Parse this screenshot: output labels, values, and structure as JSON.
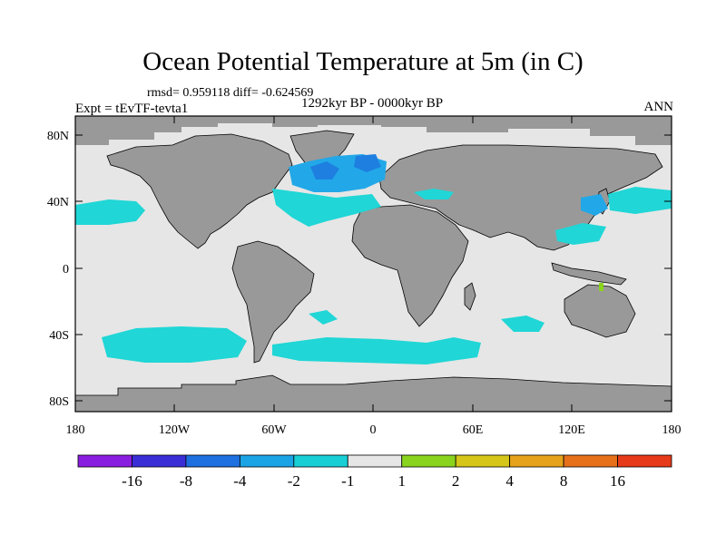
{
  "title": "Ocean Potential Temperature at 5m (in C)",
  "stats": "rmsd= 0.959118  diff= -0.624569",
  "period": "1292kyr BP - 0000kyr BP",
  "experiment": "Expt = tEvTF-tevta1",
  "season": "ANN",
  "axes": {
    "lat_labels": [
      "80N",
      "40N",
      "0",
      "40S",
      "80S"
    ],
    "lon_labels": [
      "180",
      "120W",
      "60W",
      "0",
      "60E",
      "120E",
      "180"
    ]
  },
  "colorbar": {
    "labels": [
      "-16",
      "-8",
      "-4",
      "-2",
      "-1",
      "1",
      "2",
      "4",
      "8",
      "16"
    ],
    "colors": [
      "#8a1ee0",
      "#3a2fd6",
      "#1e6fe0",
      "#1aa4e6",
      "#17cfd4",
      "#e6e6e6",
      "#8ad41e",
      "#d6c61a",
      "#e6a21a",
      "#e6701a",
      "#e63a1a"
    ]
  },
  "legend_colors": {
    "land": "#999999",
    "no_change": "#e6e6e6",
    "cool_1_2": "#20d6d6",
    "cool_2_4": "#22a8e8",
    "cool_4_8": "#1e7fe0",
    "warm_1_2": "#8ad41e"
  }
}
